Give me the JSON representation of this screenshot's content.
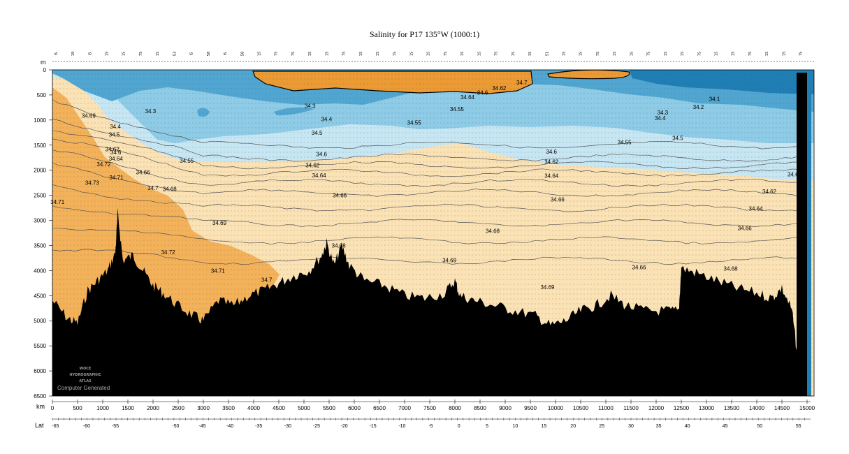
{
  "chart_data": {
    "type": "heatmap",
    "title": "Salinity for P17 135°W (1000:1)",
    "depth_axis_unit": "m",
    "depth_ticks": [
      0,
      500,
      1000,
      1500,
      2000,
      2500,
      3000,
      3500,
      4000,
      4500,
      5000,
      5500,
      6000,
      6500
    ],
    "depth_range": [
      0,
      6500
    ],
    "distance_axis_unit": "km",
    "distance_ticks": [
      0,
      500,
      1000,
      1500,
      2000,
      2500,
      3000,
      3500,
      4000,
      4500,
      5000,
      5500,
      6000,
      6500,
      7000,
      7500,
      8000,
      8500,
      9000,
      9500,
      10000,
      10500,
      11000,
      11500,
      12000,
      12500,
      13000,
      13500,
      14000,
      14500,
      15000
    ],
    "distance_range": [
      0,
      15000
    ],
    "lat_axis_label": "Lat",
    "lat_ticks": [
      {
        "label": "-65",
        "km": 60
      },
      {
        "label": "-60",
        "km": 680
      },
      {
        "label": "-55",
        "km": 1250
      },
      {
        "label": "-50",
        "km": 2450
      },
      {
        "label": "-45",
        "km": 2980
      },
      {
        "label": "-40",
        "km": 3530
      },
      {
        "label": "-35",
        "km": 4100
      },
      {
        "label": "-30",
        "km": 4680
      },
      {
        "label": "-25",
        "km": 5250
      },
      {
        "label": "-20",
        "km": 5800
      },
      {
        "label": "-15",
        "km": 6370
      },
      {
        "label": "-10",
        "km": 6950
      },
      {
        "label": "-5",
        "km": 7520
      },
      {
        "label": "0",
        "km": 8080
      },
      {
        "label": "5",
        "km": 8640
      },
      {
        "label": "10",
        "km": 9200
      },
      {
        "label": "15",
        "km": 9770
      },
      {
        "label": "20",
        "km": 10350
      },
      {
        "label": "25",
        "km": 10920
      },
      {
        "label": "30",
        "km": 11500
      },
      {
        "label": "35",
        "km": 12050
      },
      {
        "label": "40",
        "km": 12620
      },
      {
        "label": "45",
        "km": 13370
      },
      {
        "label": "50",
        "km": 14060
      },
      {
        "label": "55",
        "km": 14830
      }
    ],
    "contour_labels": [
      {
        "text": "34.69",
        "km": 720,
        "depth": 910
      },
      {
        "text": "34.3",
        "km": 1950,
        "depth": 820
      },
      {
        "text": "34.4",
        "km": 1250,
        "depth": 1130
      },
      {
        "text": "34.5",
        "km": 1230,
        "depth": 1290
      },
      {
        "text": "34.62",
        "km": 1190,
        "depth": 1580
      },
      {
        "text": "34.6",
        "km": 1260,
        "depth": 1640
      },
      {
        "text": "34.64",
        "km": 1260,
        "depth": 1770
      },
      {
        "text": "34.72",
        "km": 1020,
        "depth": 1880
      },
      {
        "text": "34.66",
        "km": 1800,
        "depth": 2040
      },
      {
        "text": "34.71",
        "km": 1270,
        "depth": 2140
      },
      {
        "text": "34.73",
        "km": 790,
        "depth": 2250
      },
      {
        "text": "34.7",
        "km": 2000,
        "depth": 2350
      },
      {
        "text": "34.68",
        "km": 2330,
        "depth": 2370
      },
      {
        "text": "34.71",
        "km": 100,
        "depth": 2630
      },
      {
        "text": "34.55",
        "km": 2670,
        "depth": 1810
      },
      {
        "text": "34.69",
        "km": 3320,
        "depth": 3050
      },
      {
        "text": "34.72",
        "km": 2300,
        "depth": 3630
      },
      {
        "text": "34.71",
        "km": 3290,
        "depth": 4000
      },
      {
        "text": "34.7",
        "km": 4260,
        "depth": 4180
      },
      {
        "text": "34.3",
        "km": 5120,
        "depth": 720
      },
      {
        "text": "34.4",
        "km": 5450,
        "depth": 980
      },
      {
        "text": "34.5",
        "km": 5260,
        "depth": 1250
      },
      {
        "text": "34.6",
        "km": 5350,
        "depth": 1680
      },
      {
        "text": "34.62",
        "km": 5170,
        "depth": 1900
      },
      {
        "text": "34.64",
        "km": 5300,
        "depth": 2100
      },
      {
        "text": "34.66",
        "km": 5710,
        "depth": 2500
      },
      {
        "text": "34.68",
        "km": 5690,
        "depth": 3500
      },
      {
        "text": "34.55",
        "km": 7190,
        "depth": 1050
      },
      {
        "text": "34.55",
        "km": 8040,
        "depth": 780
      },
      {
        "text": "34.64",
        "km": 8250,
        "depth": 540
      },
      {
        "text": "34.6",
        "km": 8550,
        "depth": 450
      },
      {
        "text": "34.62",
        "km": 8880,
        "depth": 360
      },
      {
        "text": "34.7",
        "km": 9330,
        "depth": 250
      },
      {
        "text": "34.69",
        "km": 7890,
        "depth": 3790
      },
      {
        "text": "34.68",
        "km": 8750,
        "depth": 3210
      },
      {
        "text": "34.6",
        "km": 9920,
        "depth": 1630
      },
      {
        "text": "34.62",
        "km": 9920,
        "depth": 1830
      },
      {
        "text": "34.64",
        "km": 9920,
        "depth": 2110
      },
      {
        "text": "34.66",
        "km": 10040,
        "depth": 2580
      },
      {
        "text": "34.69",
        "km": 9840,
        "depth": 4330
      },
      {
        "text": "34.55",
        "km": 11370,
        "depth": 1440
      },
      {
        "text": "34.66",
        "km": 11660,
        "depth": 3930
      },
      {
        "text": "34.3",
        "km": 12130,
        "depth": 850
      },
      {
        "text": "34.4",
        "km": 12080,
        "depth": 960
      },
      {
        "text": "34.5",
        "km": 12430,
        "depth": 1360
      },
      {
        "text": "34.2",
        "km": 12840,
        "depth": 740
      },
      {
        "text": "34.1",
        "km": 13160,
        "depth": 580
      },
      {
        "text": "34.6",
        "km": 14720,
        "depth": 2080
      },
      {
        "text": "34.62",
        "km": 14250,
        "depth": 2420
      },
      {
        "text": "34.64",
        "km": 13980,
        "depth": 2760
      },
      {
        "text": "34.66",
        "km": 13760,
        "depth": 3150
      },
      {
        "text": "34.68",
        "km": 13480,
        "depth": 3960
      }
    ],
    "station_labels": [
      "IS",
      "19",
      "IS",
      "1S",
      "1S",
      "7S",
      "1S",
      "53",
      "IS",
      "58",
      "IS",
      "58",
      "1S",
      "7S",
      "7S",
      "1S",
      "1S",
      "7S",
      "1S",
      "1S",
      "7S",
      "1S",
      "1S",
      "7S",
      "1S",
      "1S",
      "7S",
      "1S",
      "1S",
      "S1",
      "1S",
      "1S",
      "7S",
      "1S",
      "1S",
      "7S",
      "1S",
      "1S",
      "7S",
      "1S",
      "1S",
      "7S",
      "1S",
      "1S",
      "7S"
    ],
    "watermark_lines": [
      "WOCE",
      "HYDROGRAPHIC",
      "ATLAS"
    ],
    "watermark_caption": "Computer Generated",
    "colors": {
      "deep_orange": "#f3b25a",
      "light_orange": "#fbe2b5",
      "very_light_blue": "#c6e6f3",
      "light_blue": "#8dcbe6",
      "mid_blue": "#50a6d0",
      "dark_blue": "#1f7fb5",
      "bright_orange": "#ec9a34",
      "bottom": "#000000",
      "station_marker": "#2ea84a"
    }
  }
}
